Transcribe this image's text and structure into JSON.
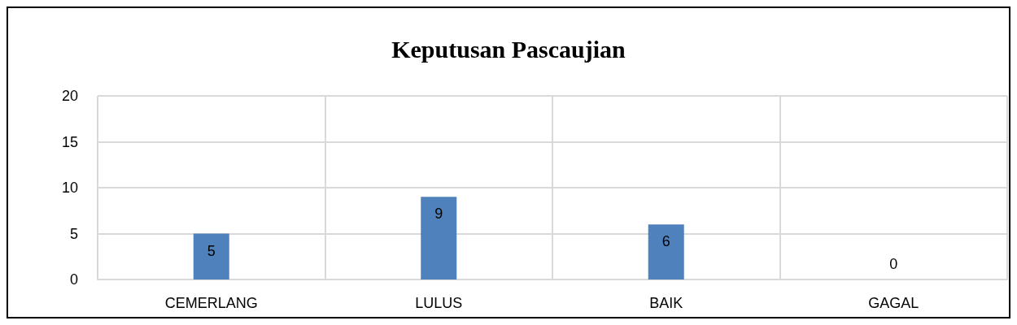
{
  "chart_data": {
    "type": "bar",
    "title": "Keputusan Pascaujian",
    "categories": [
      "CEMERLANG",
      "LULUS",
      "BAIK",
      "GAGAL"
    ],
    "values": [
      5,
      9,
      6,
      0
    ],
    "color": "#4f81bd",
    "ylim": [
      0,
      20
    ],
    "yticks": [
      0,
      5,
      10,
      15,
      20
    ],
    "grid": true,
    "data_labels": true
  }
}
